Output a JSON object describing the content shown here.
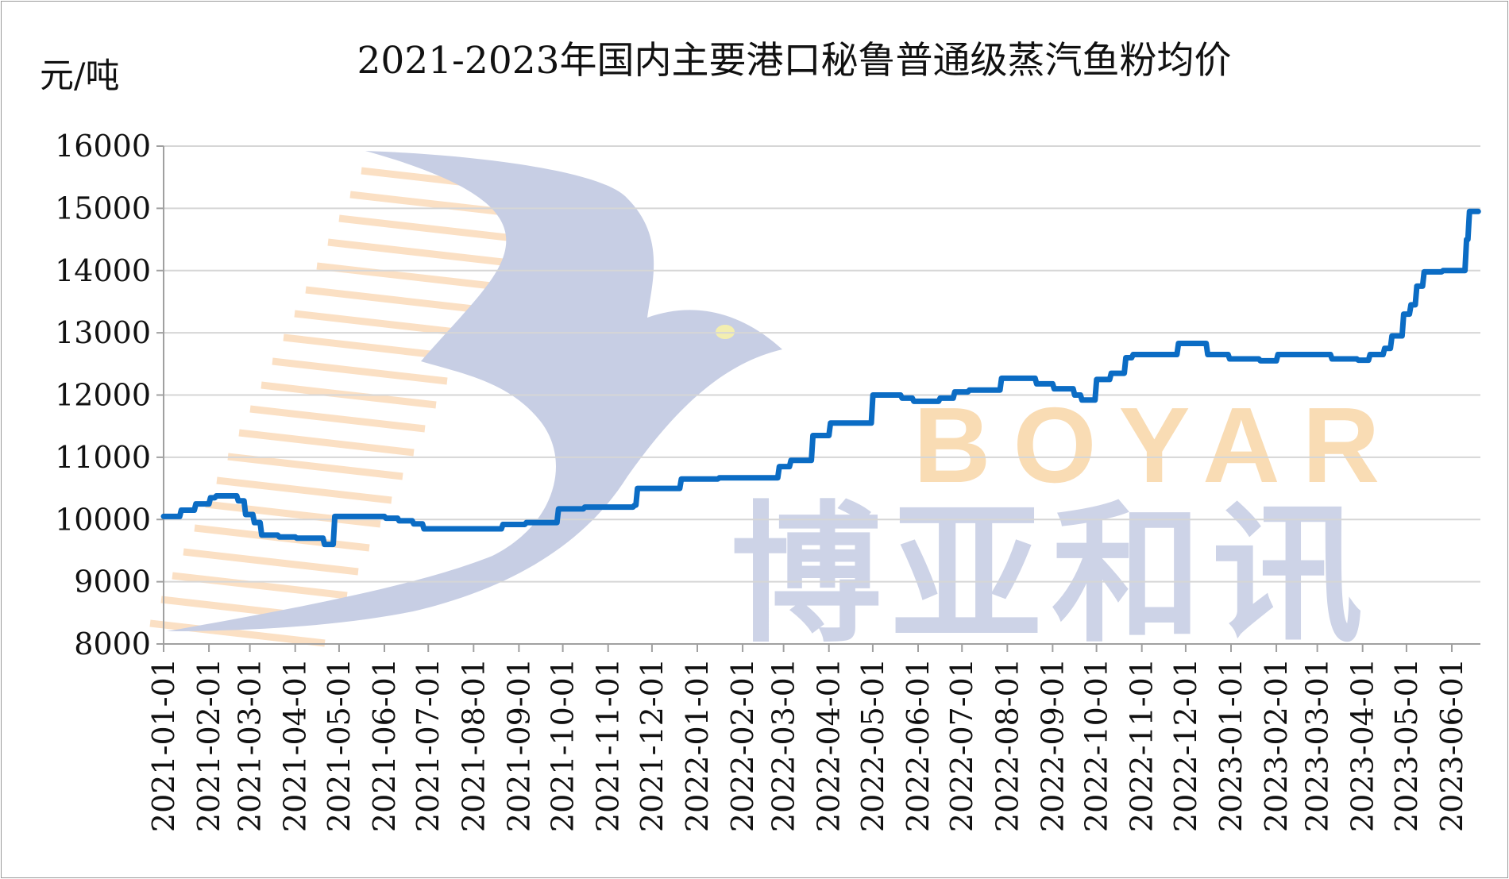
{
  "chart_data": {
    "type": "line",
    "title": "2021-2023年国内主要港口秘鲁普通级蒸汽鱼粉均价",
    "ylabel": "元/吨",
    "xlabel": "",
    "ylim": [
      8000,
      16000
    ],
    "yticks": [
      "16000",
      "15000",
      "14000",
      "13000",
      "12000",
      "11000",
      "10000",
      "9000",
      "8000"
    ],
    "xticks": [
      "2021-01-01",
      "2021-02-01",
      "2021-03-01",
      "2021-04-01",
      "2021-05-01",
      "2021-06-01",
      "2021-07-01",
      "2021-08-01",
      "2021-09-01",
      "2021-10-01",
      "2021-11-01",
      "2021-12-01",
      "2022-01-01",
      "2022-02-01",
      "2022-03-01",
      "2022-04-01",
      "2022-05-01",
      "2022-06-01",
      "2022-07-01",
      "2022-08-01",
      "2022-09-01",
      "2022-10-01",
      "2022-11-01",
      "2022-12-01",
      "2023-01-01",
      "2023-02-01",
      "2023-03-01",
      "2023-04-01",
      "2023-05-01",
      "2023-06-01"
    ],
    "grid": true,
    "line_color": "#0b6cc4",
    "series": [
      {
        "x": [
          "2021-01-01",
          "2021-01-12",
          "2021-01-22",
          "2021-02-01",
          "2021-02-05",
          "2021-02-20",
          "2021-02-25",
          "2021-03-03",
          "2021-03-08",
          "2021-03-20",
          "2021-04-01",
          "2021-04-20",
          "2021-04-27",
          "2021-06-01",
          "2021-06-10",
          "2021-06-20",
          "2021-06-27",
          "2021-08-20",
          "2021-09-05",
          "2021-09-27",
          "2021-10-15",
          "2021-11-18",
          "2021-11-20",
          "2021-12-20",
          "2022-01-15",
          "2022-02-25",
          "2022-03-05",
          "2022-03-20",
          "2022-04-01",
          "2022-04-30",
          "2022-05-20",
          "2022-05-28",
          "2022-06-15",
          "2022-06-25",
          "2022-07-05",
          "2022-07-27",
          "2022-08-20",
          "2022-09-01",
          "2022-09-15",
          "2022-09-20",
          "2022-09-30",
          "2022-10-10",
          "2022-10-20",
          "2022-10-25",
          "2022-11-25",
          "2022-12-15",
          "2022-12-30",
          "2023-01-20",
          "2023-02-01",
          "2023-03-10",
          "2023-03-28",
          "2023-04-05",
          "2023-04-15",
          "2023-04-20",
          "2023-04-28",
          "2023-05-03",
          "2023-05-07",
          "2023-05-12",
          "2023-05-25",
          "2023-06-08",
          "2023-06-10",
          "2023-06-12",
          "2023-06-18"
        ],
        "y": [
          10050,
          10150,
          10250,
          10350,
          10380,
          10300,
          10080,
          9950,
          9750,
          9720,
          9700,
          9600,
          10050,
          10020,
          9980,
          9930,
          9850,
          9920,
          9950,
          10170,
          10200,
          10230,
          10500,
          10650,
          10670,
          10850,
          10950,
          11350,
          11550,
          12000,
          11950,
          11900,
          11950,
          12050,
          12080,
          12270,
          12180,
          12100,
          12000,
          11920,
          12250,
          12350,
          12600,
          12650,
          12830,
          12650,
          12580,
          12550,
          12650,
          12580,
          12560,
          12650,
          12750,
          12950,
          13300,
          13450,
          13750,
          13980,
          14000,
          14000,
          14500,
          14950,
          14950
        ]
      }
    ]
  },
  "watermark": {
    "brand_en": "BOYAR",
    "brand_cn": "博亚和讯",
    "brand_color": "#f7c98f",
    "mark_color": "#c5cce3"
  }
}
